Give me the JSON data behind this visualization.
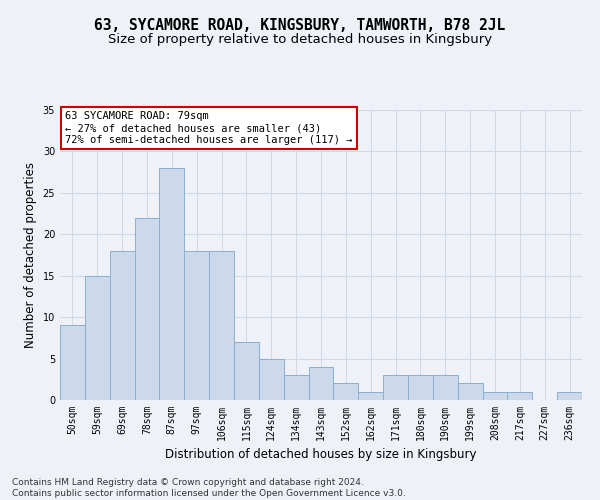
{
  "title": "63, SYCAMORE ROAD, KINGSBURY, TAMWORTH, B78 2JL",
  "subtitle": "Size of property relative to detached houses in Kingsbury",
  "xlabel": "Distribution of detached houses by size in Kingsbury",
  "ylabel": "Number of detached properties",
  "bar_color": "#ccd9ea",
  "bar_edge_color": "#8ab0d0",
  "background_color": "#eef2f8",
  "categories": [
    "50sqm",
    "59sqm",
    "69sqm",
    "78sqm",
    "87sqm",
    "97sqm",
    "106sqm",
    "115sqm",
    "124sqm",
    "134sqm",
    "143sqm",
    "152sqm",
    "162sqm",
    "171sqm",
    "180sqm",
    "190sqm",
    "199sqm",
    "208sqm",
    "217sqm",
    "227sqm",
    "236sqm"
  ],
  "values": [
    9,
    15,
    18,
    22,
    28,
    18,
    18,
    7,
    5,
    3,
    4,
    2,
    1,
    3,
    3,
    3,
    2,
    1,
    1,
    0,
    1
  ],
  "ylim": [
    0,
    35
  ],
  "yticks": [
    0,
    5,
    10,
    15,
    20,
    25,
    30,
    35
  ],
  "annotation_title": "63 SYCAMORE ROAD: 79sqm",
  "annotation_line1": "← 27% of detached houses are smaller (43)",
  "annotation_line2": "72% of semi-detached houses are larger (117) →",
  "annotation_box_color": "#ffffff",
  "annotation_box_edge_color": "#cc0000",
  "footer_line1": "Contains HM Land Registry data © Crown copyright and database right 2024.",
  "footer_line2": "Contains public sector information licensed under the Open Government Licence v3.0.",
  "grid_color": "#d0d8e8",
  "title_fontsize": 10.5,
  "subtitle_fontsize": 9.5,
  "axis_label_fontsize": 8.5,
  "tick_fontsize": 7,
  "annotation_fontsize": 7.5,
  "footer_fontsize": 6.5
}
